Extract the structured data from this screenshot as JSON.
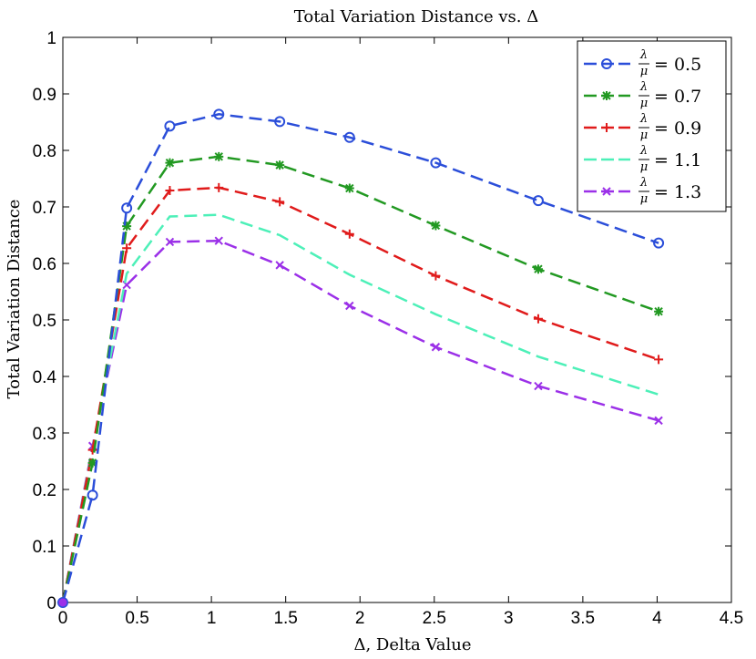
{
  "chart_data": {
    "type": "line",
    "title": "Total Variation Distance vs. Δ",
    "xlabel": "Δ, Delta Value",
    "ylabel": "Total Variation Distance",
    "xlim": [
      0,
      4.5
    ],
    "ylim": [
      0,
      1
    ],
    "xticks": [
      0,
      0.5,
      1,
      1.5,
      2,
      2.5,
      3,
      3.5,
      4,
      4.5
    ],
    "xtick_labels": [
      "0",
      "0.5",
      "1",
      "1.5",
      "2",
      "2.5",
      "3",
      "3.5",
      "4",
      "4.5"
    ],
    "yticks": [
      0,
      0.1,
      0.2,
      0.3,
      0.4,
      0.5,
      0.6,
      0.7,
      0.8,
      0.9,
      1
    ],
    "ytick_labels": [
      "0",
      "0.1",
      "0.2",
      "0.3",
      "0.4",
      "0.5",
      "0.6",
      "0.7",
      "0.8",
      "0.9",
      "1"
    ],
    "grid": false,
    "legend_position": "top-right",
    "x": [
      0,
      0.2,
      0.43,
      0.72,
      1.05,
      1.46,
      1.93,
      2.51,
      3.2,
      4.01
    ],
    "series": [
      {
        "name": "λ/μ = 0.5",
        "numerator": "λ",
        "denominator": "μ",
        "rhs": "= 0.5",
        "color": "#2b4ed9",
        "marker": "circle",
        "values": [
          0,
          0.19,
          0.698,
          0.843,
          0.864,
          0.851,
          0.823,
          0.778,
          0.711,
          0.636
        ]
      },
      {
        "name": "λ/μ = 0.7",
        "numerator": "λ",
        "denominator": "μ",
        "rhs": "= 0.7",
        "color": "#229922",
        "marker": "star",
        "values": [
          0,
          0.247,
          0.666,
          0.778,
          0.789,
          0.774,
          0.733,
          0.667,
          0.59,
          0.515
        ]
      },
      {
        "name": "λ/μ = 0.9",
        "numerator": "λ",
        "denominator": "μ",
        "rhs": "= 0.9",
        "color": "#e01b1b",
        "marker": "plus",
        "values": [
          0,
          0.27,
          0.627,
          0.729,
          0.734,
          0.709,
          0.652,
          0.578,
          0.502,
          0.43
        ]
      },
      {
        "name": "λ/μ = 1.1",
        "numerator": "λ",
        "denominator": "μ",
        "rhs": "= 1.1",
        "color": "#4df0b8",
        "marker": "none",
        "values": [
          0,
          0.273,
          0.582,
          0.683,
          0.686,
          0.65,
          0.58,
          0.51,
          0.435,
          0.368
        ]
      },
      {
        "name": "λ/μ = 1.3",
        "numerator": "λ",
        "denominator": "μ",
        "rhs": "= 1.3",
        "color": "#9b30e8",
        "marker": "x",
        "values": [
          0,
          0.277,
          0.562,
          0.638,
          0.64,
          0.597,
          0.525,
          0.452,
          0.383,
          0.322
        ]
      }
    ]
  }
}
